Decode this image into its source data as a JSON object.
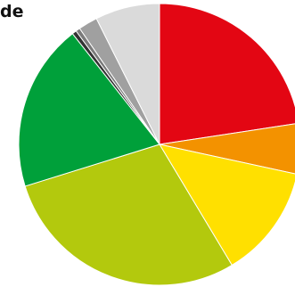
{
  "chart_data": {
    "type": "pie",
    "title": "de",
    "start_angle_deg": 0,
    "direction": "clockwise",
    "slices": [
      {
        "label": "",
        "value": 22.6,
        "color": "#e30613"
      },
      {
        "label": "",
        "value": 5.8,
        "color": "#f39200"
      },
      {
        "label": "",
        "value": 13.0,
        "color": "#ffe000"
      },
      {
        "label": "",
        "value": 28.8,
        "color": "#b3c90d"
      },
      {
        "label": "",
        "value": 19.2,
        "color": "#00a03a"
      },
      {
        "label": "",
        "value": 0.5,
        "color": "#333333"
      },
      {
        "label": "",
        "value": 0.5,
        "color": "#7a7a7a"
      },
      {
        "label": "",
        "value": 2.2,
        "color": "#a0a0a0"
      },
      {
        "label": "",
        "value": 7.4,
        "color": "#dadada"
      }
    ]
  }
}
